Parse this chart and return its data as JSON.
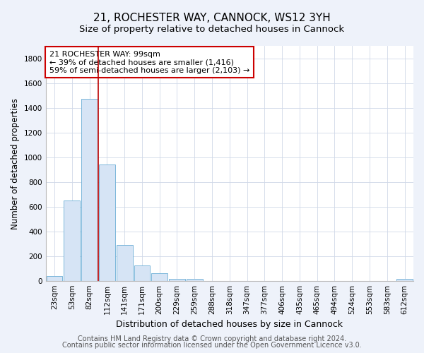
{
  "title_line1": "21, ROCHESTER WAY, CANNOCK, WS12 3YH",
  "title_line2": "Size of property relative to detached houses in Cannock",
  "xlabel": "Distribution of detached houses by size in Cannock",
  "ylabel": "Number of detached properties",
  "bar_color": "#d6e4f5",
  "bar_edge_color": "#6aaed6",
  "bin_labels": [
    "23sqm",
    "53sqm",
    "82sqm",
    "112sqm",
    "141sqm",
    "171sqm",
    "200sqm",
    "229sqm",
    "259sqm",
    "288sqm",
    "318sqm",
    "347sqm",
    "377sqm",
    "406sqm",
    "435sqm",
    "465sqm",
    "494sqm",
    "524sqm",
    "553sqm",
    "583sqm",
    "612sqm"
  ],
  "bar_heights": [
    40,
    650,
    1470,
    940,
    290,
    125,
    60,
    20,
    15,
    0,
    0,
    0,
    0,
    0,
    0,
    0,
    0,
    0,
    0,
    0,
    15
  ],
  "ylim": [
    0,
    1900
  ],
  "yticks": [
    0,
    200,
    400,
    600,
    800,
    1000,
    1200,
    1400,
    1600,
    1800
  ],
  "vline_x": 2.5,
  "vline_color": "#bb0000",
  "annotation_text": "21 ROCHESTER WAY: 99sqm\n← 39% of detached houses are smaller (1,416)\n59% of semi-detached houses are larger (2,103) →",
  "annotation_box_color": "#ffffff",
  "annotation_border_color": "#cc0000",
  "footer_line1": "Contains HM Land Registry data © Crown copyright and database right 2024.",
  "footer_line2": "Contains public sector information licensed under the Open Government Licence v3.0.",
  "background_color": "#eef2fa",
  "plot_background": "#ffffff",
  "grid_color": "#d0d8e8",
  "title_fontsize": 11,
  "subtitle_fontsize": 9.5,
  "tick_fontsize": 7.5,
  "ylabel_fontsize": 8.5,
  "xlabel_fontsize": 9,
  "annotation_fontsize": 8,
  "footer_fontsize": 7
}
